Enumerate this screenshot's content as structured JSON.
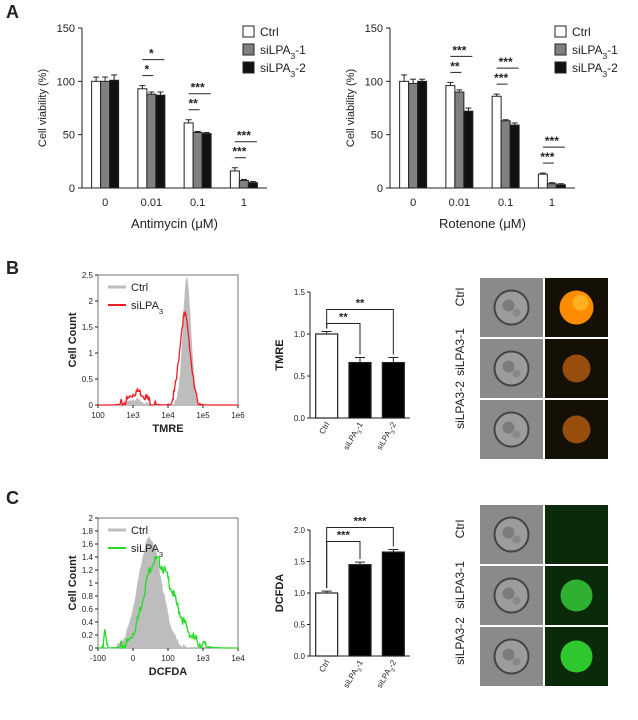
{
  "panels": {
    "A": "A",
    "B": "B",
    "C": "C"
  },
  "legend_bar": [
    "Ctrl",
    "siLPA3-1",
    "siLPA3-2"
  ],
  "legend_hist": {
    "ctrl": "Ctrl",
    "si": "siLPA3"
  },
  "colors": {
    "ctrl": "#ffffff",
    "si1": "#808080",
    "si2": "#111111",
    "hist_ctrl": "#bdbdbd",
    "hist_red": "#ee1c24",
    "hist_green": "#22dd22"
  },
  "cell_labels": [
    "Ctrl",
    "siLPA3-1",
    "siLPA3-2"
  ],
  "chart_data": [
    {
      "type": "bar",
      "title": "",
      "xlabel": "Antimycin (μM)",
      "ylabel": "Cell viability (%)",
      "ylim": [
        0,
        150
      ],
      "yticks": [
        0,
        50,
        100,
        150
      ],
      "categories": [
        "0",
        "0.01",
        "0.1",
        "1"
      ],
      "series": [
        {
          "name": "Ctrl",
          "values": [
            100,
            93,
            61,
            16
          ],
          "errors": [
            4,
            3,
            3,
            3
          ]
        },
        {
          "name": "siLPA3-1",
          "values": [
            100,
            88,
            52,
            7
          ],
          "errors": [
            4,
            2,
            1,
            1
          ]
        },
        {
          "name": "siLPA3-2",
          "values": [
            101,
            87,
            51,
            5
          ],
          "errors": [
            5,
            3,
            1,
            1
          ]
        }
      ],
      "significance": [
        {
          "category": 1,
          "labels": [
            "*",
            "*"
          ]
        },
        {
          "category": 2,
          "labels": [
            "**",
            "***"
          ]
        },
        {
          "category": 3,
          "labels": [
            "***",
            "***"
          ]
        }
      ]
    },
    {
      "type": "bar",
      "title": "",
      "xlabel": "Rotenone (μM)",
      "ylabel": "Cell viability (%)",
      "ylim": [
        0,
        150
      ],
      "yticks": [
        0,
        50,
        100,
        150
      ],
      "categories": [
        "0",
        "0.01",
        "0.1",
        "1"
      ],
      "series": [
        {
          "name": "Ctrl",
          "values": [
            100,
            96,
            86,
            13
          ],
          "errors": [
            6,
            3,
            2,
            1
          ]
        },
        {
          "name": "siLPA3-1",
          "values": [
            98,
            90,
            63,
            4
          ],
          "errors": [
            4,
            2,
            1,
            1
          ]
        },
        {
          "name": "siLPA3-2",
          "values": [
            100,
            72,
            59,
            3
          ],
          "errors": [
            2,
            3,
            2,
            1
          ]
        }
      ],
      "significance": [
        {
          "category": 1,
          "labels": [
            "**",
            "***"
          ]
        },
        {
          "category": 2,
          "labels": [
            "***",
            "***"
          ]
        },
        {
          "category": 3,
          "labels": [
            "***",
            "***"
          ]
        }
      ]
    },
    {
      "type": "area",
      "xlabel": "TMRE",
      "ylabel": "Cell Count",
      "ylim": [
        0,
        2.5
      ],
      "yticks": [
        "0",
        "0.5",
        "1",
        "1.5",
        "2",
        "2.5"
      ],
      "xticks": [
        "100",
        "1e3",
        "1e4",
        "1e5",
        "1e6"
      ],
      "series": [
        {
          "name": "Ctrl",
          "peak_x": "~3e4",
          "peak_y": 2.45
        },
        {
          "name": "siLPA3",
          "peak_x": "~3e4",
          "peak_y": 1.72
        }
      ]
    },
    {
      "type": "bar",
      "xlabel": "",
      "ylabel": "TMRE",
      "ylim": [
        0,
        1.5
      ],
      "yticks": [
        "0.0",
        "0.5",
        "1.0",
        "1.5"
      ],
      "categories": [
        "Ctrl",
        "siLPA3-1",
        "siLPA3-2"
      ],
      "values": [
        1.0,
        0.66,
        0.66
      ],
      "errors": [
        0.03,
        0.06,
        0.06
      ],
      "significance": [
        "**",
        "**"
      ]
    },
    {
      "type": "area",
      "xlabel": "DCFDA",
      "ylabel": "Cell Count",
      "ylim": [
        0,
        2
      ],
      "yticks": [
        "0",
        "0.2",
        "0.4",
        "0.6",
        "0.8",
        "1",
        "1.2",
        "1.4",
        "1.6",
        "1.8",
        "2"
      ],
      "xticks": [
        "-100",
        "0",
        "100",
        "1e3",
        "1e4"
      ],
      "series": [
        {
          "name": "Ctrl",
          "peak_y": 1.7
        },
        {
          "name": "siLPA3",
          "peak_y": 1.35
        }
      ]
    },
    {
      "type": "bar",
      "xlabel": "",
      "ylabel": "DCFDA",
      "ylim": [
        0,
        2.0
      ],
      "yticks": [
        "0.0",
        "0.5",
        "1.0",
        "1.5",
        "2.0"
      ],
      "categories": [
        "Ctrl",
        "siLPA3-1",
        "siLPA3-2"
      ],
      "values": [
        1.0,
        1.45,
        1.65
      ],
      "errors": [
        0.03,
        0.04,
        0.04
      ],
      "significance": [
        "***",
        "***"
      ]
    }
  ]
}
